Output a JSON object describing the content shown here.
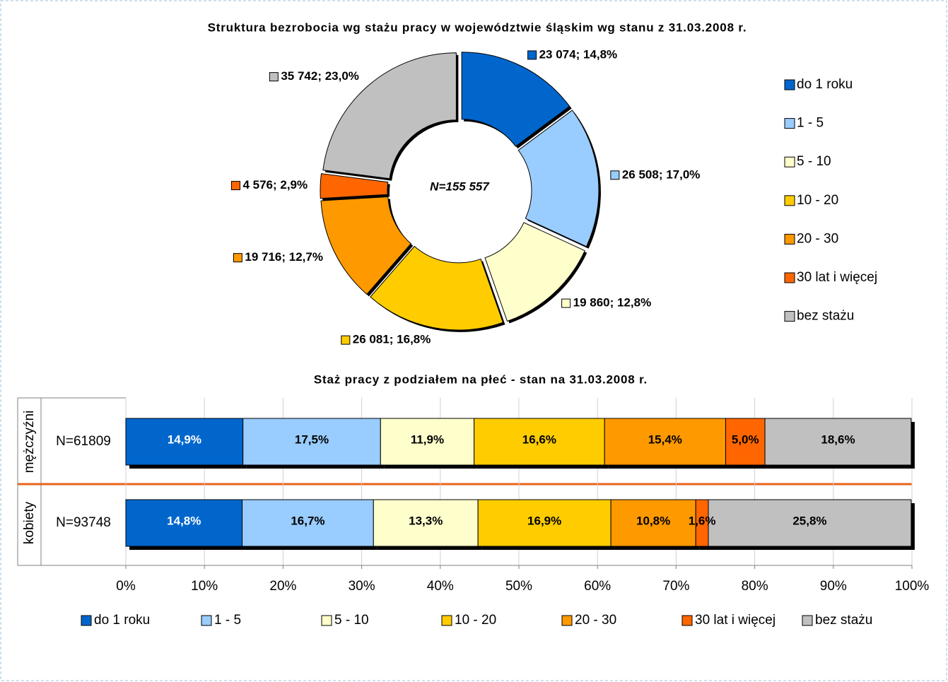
{
  "chart_data": [
    {
      "type": "pie",
      "donut": true,
      "title": "Struktura bezrobocia wg stażu pracy w województwie śląskim wg stanu z 31.03.2008 r.",
      "center_label": "N=155 557",
      "categories": [
        "do 1 roku",
        "1 - 5",
        "5 - 10",
        "10 - 20",
        "20 - 30",
        "30 lat i więcej",
        "bez stażu"
      ],
      "values": [
        23074,
        26508,
        19860,
        26081,
        19716,
        4576,
        35742
      ],
      "value_labels": [
        "23 074; 14,8%",
        "26 508; 17,0%",
        "19 860; 12,8%",
        "26 081; 16,8%",
        "19 716; 12,7%",
        "4 576; 2,9%",
        "35 742; 23,0%"
      ],
      "colors": [
        "#0066cc",
        "#99ccff",
        "#ffffcc",
        "#ffcc00",
        "#ff9900",
        "#ff6600",
        "#c0c0c0"
      ],
      "legend": "right"
    },
    {
      "type": "bar",
      "orientation": "horizontal",
      "stacked": true,
      "title": "Staż pracy z podziałem na płeć - stan na 31.03.2008 r.",
      "categories": [
        "mężczyźni",
        "kobiety"
      ],
      "category_notes": [
        "N=61809",
        "N=93748"
      ],
      "series": [
        {
          "name": "do 1 roku",
          "color": "#0066cc",
          "values": [
            14.9,
            14.8
          ],
          "value_labels": [
            "14,9%",
            "14,8%"
          ]
        },
        {
          "name": "1 - 5",
          "color": "#99ccff",
          "values": [
            17.5,
            16.7
          ],
          "value_labels": [
            "17,5%",
            "16,7%"
          ]
        },
        {
          "name": "5 - 10",
          "color": "#ffffcc",
          "values": [
            11.9,
            13.3
          ],
          "value_labels": [
            "11,9%",
            "13,3%"
          ]
        },
        {
          "name": "10 - 20",
          "color": "#ffcc00",
          "values": [
            16.6,
            16.9
          ],
          "value_labels": [
            "16,6%",
            "16,9%"
          ]
        },
        {
          "name": "20 - 30",
          "color": "#ff9900",
          "values": [
            15.4,
            10.8
          ],
          "value_labels": [
            "15,4%",
            "10,8%"
          ]
        },
        {
          "name": "30 lat i więcej",
          "color": "#ff6600",
          "values": [
            5.0,
            1.6
          ],
          "value_labels": [
            "5,0%",
            "1,6%"
          ]
        },
        {
          "name": "bez stażu",
          "color": "#c0c0c0",
          "values": [
            18.6,
            25.8
          ],
          "value_labels": [
            "18,6%",
            "25,8%"
          ]
        }
      ],
      "xlim": [
        0,
        100
      ],
      "xticks": [
        {
          "value": 0,
          "label": "0%"
        },
        {
          "value": 10,
          "label": "10%"
        },
        {
          "value": 20,
          "label": "20%"
        },
        {
          "value": 30,
          "label": "30%"
        },
        {
          "value": 40,
          "label": "40%"
        },
        {
          "value": 50,
          "label": "50%"
        },
        {
          "value": 60,
          "label": "60%"
        },
        {
          "value": 70,
          "label": "70%"
        },
        {
          "value": 80,
          "label": "80%"
        },
        {
          "value": 90,
          "label": "90%"
        },
        {
          "value": 100,
          "label": "100%"
        }
      ],
      "grid": true,
      "legend": "bottom"
    }
  ]
}
